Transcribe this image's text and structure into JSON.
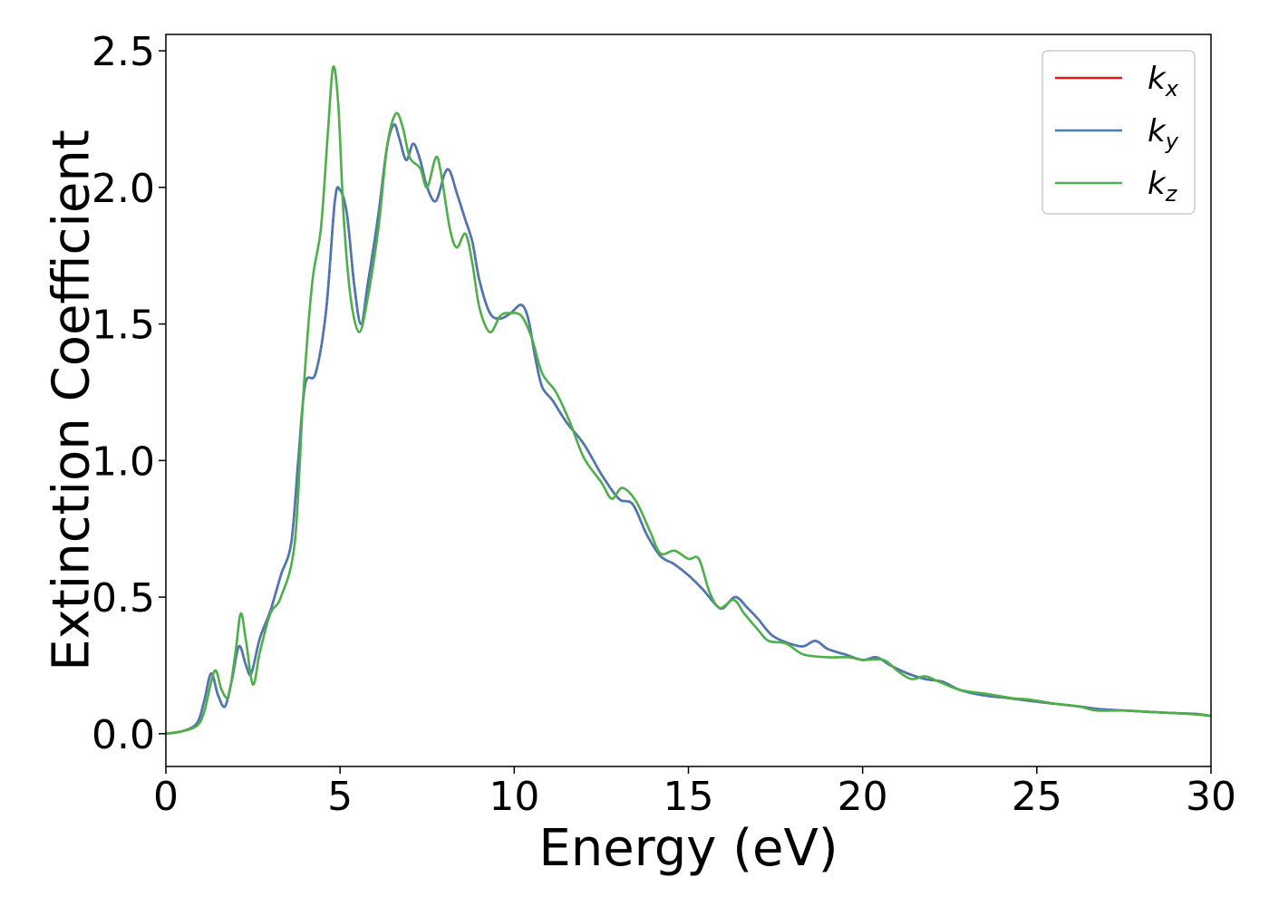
{
  "chart_data": {
    "type": "line",
    "xlabel": "Energy (eV)",
    "ylabel": "Extinction Coefficient",
    "xlim": [
      0,
      30
    ],
    "ylim": [
      -0.12,
      2.56
    ],
    "x_ticks": [
      "0",
      "5",
      "10",
      "15",
      "20",
      "25",
      "30"
    ],
    "y_ticks": [
      "0.0",
      "0.5",
      "1.0",
      "1.5",
      "2.0",
      "2.5"
    ],
    "grid": false,
    "legend_position": "top-right",
    "legend": [
      {
        "symbol": "k",
        "sub": "x"
      },
      {
        "symbol": "k",
        "sub": "y"
      },
      {
        "symbol": "k",
        "sub": "z"
      }
    ],
    "series": [
      {
        "name": "k_x",
        "color": "#e41a1c",
        "points": [
          [
            0,
            0
          ],
          [
            0.5,
            0.01
          ],
          [
            0.9,
            0.04
          ],
          [
            1.1,
            0.12
          ],
          [
            1.3,
            0.22
          ],
          [
            1.5,
            0.14
          ],
          [
            1.7,
            0.1
          ],
          [
            1.9,
            0.2
          ],
          [
            2.1,
            0.32
          ],
          [
            2.3,
            0.25
          ],
          [
            2.45,
            0.22
          ],
          [
            2.7,
            0.35
          ],
          [
            3.0,
            0.45
          ],
          [
            3.3,
            0.58
          ],
          [
            3.6,
            0.7
          ],
          [
            3.8,
            1.0
          ],
          [
            4.0,
            1.28
          ],
          [
            4.3,
            1.32
          ],
          [
            4.6,
            1.55
          ],
          [
            4.85,
            1.95
          ],
          [
            5.0,
            1.99
          ],
          [
            5.2,
            1.9
          ],
          [
            5.4,
            1.65
          ],
          [
            5.6,
            1.5
          ],
          [
            5.8,
            1.65
          ],
          [
            6.1,
            1.9
          ],
          [
            6.35,
            2.15
          ],
          [
            6.55,
            2.23
          ],
          [
            6.7,
            2.18
          ],
          [
            6.9,
            2.1
          ],
          [
            7.1,
            2.16
          ],
          [
            7.3,
            2.1
          ],
          [
            7.5,
            2.0
          ],
          [
            7.75,
            1.95
          ],
          [
            8.0,
            2.05
          ],
          [
            8.15,
            2.06
          ],
          [
            8.35,
            1.98
          ],
          [
            8.6,
            1.88
          ],
          [
            8.8,
            1.8
          ],
          [
            9.0,
            1.66
          ],
          [
            9.3,
            1.54
          ],
          [
            9.6,
            1.52
          ],
          [
            9.9,
            1.54
          ],
          [
            10.2,
            1.57
          ],
          [
            10.4,
            1.52
          ],
          [
            10.6,
            1.38
          ],
          [
            10.8,
            1.27
          ],
          [
            11.1,
            1.22
          ],
          [
            11.5,
            1.14
          ],
          [
            12.0,
            1.06
          ],
          [
            12.5,
            0.95
          ],
          [
            13.0,
            0.86
          ],
          [
            13.4,
            0.84
          ],
          [
            13.8,
            0.73
          ],
          [
            14.2,
            0.65
          ],
          [
            14.6,
            0.62
          ],
          [
            15.0,
            0.58
          ],
          [
            15.4,
            0.53
          ],
          [
            15.8,
            0.47
          ],
          [
            16.0,
            0.46
          ],
          [
            16.35,
            0.5
          ],
          [
            16.7,
            0.46
          ],
          [
            17.0,
            0.42
          ],
          [
            17.4,
            0.36
          ],
          [
            17.9,
            0.33
          ],
          [
            18.3,
            0.32
          ],
          [
            18.65,
            0.34
          ],
          [
            19.0,
            0.31
          ],
          [
            19.5,
            0.29
          ],
          [
            20.0,
            0.27
          ],
          [
            20.4,
            0.28
          ],
          [
            20.8,
            0.25
          ],
          [
            21.3,
            0.22
          ],
          [
            21.8,
            0.2
          ],
          [
            22.3,
            0.19
          ],
          [
            22.8,
            0.16
          ],
          [
            23.5,
            0.14
          ],
          [
            24.2,
            0.13
          ],
          [
            24.8,
            0.12
          ],
          [
            25.5,
            0.11
          ],
          [
            26.2,
            0.1
          ],
          [
            26.8,
            0.09
          ],
          [
            27.5,
            0.085
          ],
          [
            28.2,
            0.08
          ],
          [
            29.0,
            0.075
          ],
          [
            29.6,
            0.072
          ],
          [
            30.0,
            0.065
          ]
        ]
      },
      {
        "name": "k_y",
        "color": "#4a7ab5",
        "points": [
          [
            0,
            0
          ],
          [
            0.5,
            0.01
          ],
          [
            0.9,
            0.04
          ],
          [
            1.1,
            0.12
          ],
          [
            1.3,
            0.22
          ],
          [
            1.5,
            0.14
          ],
          [
            1.7,
            0.1
          ],
          [
            1.9,
            0.2
          ],
          [
            2.1,
            0.32
          ],
          [
            2.3,
            0.25
          ],
          [
            2.45,
            0.22
          ],
          [
            2.7,
            0.35
          ],
          [
            3.0,
            0.45
          ],
          [
            3.3,
            0.58
          ],
          [
            3.6,
            0.7
          ],
          [
            3.8,
            1.0
          ],
          [
            4.0,
            1.28
          ],
          [
            4.3,
            1.32
          ],
          [
            4.6,
            1.55
          ],
          [
            4.85,
            1.95
          ],
          [
            5.0,
            1.99
          ],
          [
            5.2,
            1.9
          ],
          [
            5.4,
            1.65
          ],
          [
            5.6,
            1.5
          ],
          [
            5.8,
            1.65
          ],
          [
            6.1,
            1.9
          ],
          [
            6.35,
            2.15
          ],
          [
            6.55,
            2.23
          ],
          [
            6.7,
            2.18
          ],
          [
            6.9,
            2.1
          ],
          [
            7.1,
            2.16
          ],
          [
            7.3,
            2.1
          ],
          [
            7.5,
            2.0
          ],
          [
            7.75,
            1.95
          ],
          [
            8.0,
            2.05
          ],
          [
            8.15,
            2.06
          ],
          [
            8.35,
            1.98
          ],
          [
            8.6,
            1.88
          ],
          [
            8.8,
            1.8
          ],
          [
            9.0,
            1.66
          ],
          [
            9.3,
            1.54
          ],
          [
            9.6,
            1.52
          ],
          [
            9.9,
            1.54
          ],
          [
            10.2,
            1.57
          ],
          [
            10.4,
            1.52
          ],
          [
            10.6,
            1.38
          ],
          [
            10.8,
            1.27
          ],
          [
            11.1,
            1.22
          ],
          [
            11.5,
            1.14
          ],
          [
            12.0,
            1.06
          ],
          [
            12.5,
            0.95
          ],
          [
            13.0,
            0.86
          ],
          [
            13.4,
            0.84
          ],
          [
            13.8,
            0.73
          ],
          [
            14.2,
            0.65
          ],
          [
            14.6,
            0.62
          ],
          [
            15.0,
            0.58
          ],
          [
            15.4,
            0.53
          ],
          [
            15.8,
            0.47
          ],
          [
            16.0,
            0.46
          ],
          [
            16.35,
            0.5
          ],
          [
            16.7,
            0.46
          ],
          [
            17.0,
            0.42
          ],
          [
            17.4,
            0.36
          ],
          [
            17.9,
            0.33
          ],
          [
            18.3,
            0.32
          ],
          [
            18.65,
            0.34
          ],
          [
            19.0,
            0.31
          ],
          [
            19.5,
            0.29
          ],
          [
            20.0,
            0.27
          ],
          [
            20.4,
            0.28
          ],
          [
            20.8,
            0.25
          ],
          [
            21.3,
            0.22
          ],
          [
            21.8,
            0.2
          ],
          [
            22.3,
            0.19
          ],
          [
            22.8,
            0.16
          ],
          [
            23.5,
            0.14
          ],
          [
            24.2,
            0.13
          ],
          [
            24.8,
            0.12
          ],
          [
            25.5,
            0.11
          ],
          [
            26.2,
            0.1
          ],
          [
            26.8,
            0.09
          ],
          [
            27.5,
            0.085
          ],
          [
            28.2,
            0.08
          ],
          [
            29.0,
            0.075
          ],
          [
            29.6,
            0.072
          ],
          [
            30.0,
            0.065
          ]
        ]
      },
      {
        "name": "k_z",
        "color": "#4daf4a",
        "points": [
          [
            0,
            0
          ],
          [
            0.5,
            0.01
          ],
          [
            0.9,
            0.03
          ],
          [
            1.1,
            0.08
          ],
          [
            1.4,
            0.23
          ],
          [
            1.6,
            0.16
          ],
          [
            1.8,
            0.14
          ],
          [
            2.0,
            0.3
          ],
          [
            2.15,
            0.44
          ],
          [
            2.3,
            0.34
          ],
          [
            2.5,
            0.18
          ],
          [
            2.7,
            0.3
          ],
          [
            3.0,
            0.44
          ],
          [
            3.3,
            0.5
          ],
          [
            3.7,
            0.7
          ],
          [
            3.95,
            1.25
          ],
          [
            4.2,
            1.65
          ],
          [
            4.45,
            1.85
          ],
          [
            4.65,
            2.2
          ],
          [
            4.8,
            2.44
          ],
          [
            4.95,
            2.3
          ],
          [
            5.1,
            1.9
          ],
          [
            5.3,
            1.6
          ],
          [
            5.55,
            1.47
          ],
          [
            5.8,
            1.6
          ],
          [
            6.1,
            1.85
          ],
          [
            6.35,
            2.15
          ],
          [
            6.6,
            2.27
          ],
          [
            6.8,
            2.22
          ],
          [
            7.0,
            2.11
          ],
          [
            7.3,
            2.07
          ],
          [
            7.5,
            2.0
          ],
          [
            7.75,
            2.11
          ],
          [
            7.9,
            2.05
          ],
          [
            8.15,
            1.85
          ],
          [
            8.35,
            1.78
          ],
          [
            8.6,
            1.83
          ],
          [
            8.8,
            1.72
          ],
          [
            9.0,
            1.56
          ],
          [
            9.3,
            1.47
          ],
          [
            9.6,
            1.53
          ],
          [
            9.85,
            1.54
          ],
          [
            10.2,
            1.53
          ],
          [
            10.5,
            1.45
          ],
          [
            10.8,
            1.32
          ],
          [
            11.2,
            1.25
          ],
          [
            11.6,
            1.14
          ],
          [
            12.0,
            1.01
          ],
          [
            12.5,
            0.92
          ],
          [
            12.8,
            0.86
          ],
          [
            13.1,
            0.9
          ],
          [
            13.5,
            0.85
          ],
          [
            13.9,
            0.74
          ],
          [
            14.2,
            0.66
          ],
          [
            14.6,
            0.67
          ],
          [
            15.0,
            0.64
          ],
          [
            15.3,
            0.64
          ],
          [
            15.6,
            0.52
          ],
          [
            15.9,
            0.46
          ],
          [
            16.3,
            0.49
          ],
          [
            16.6,
            0.44
          ],
          [
            17.0,
            0.38
          ],
          [
            17.3,
            0.34
          ],
          [
            17.8,
            0.33
          ],
          [
            18.3,
            0.29
          ],
          [
            19.0,
            0.28
          ],
          [
            19.6,
            0.28
          ],
          [
            20.0,
            0.27
          ],
          [
            20.6,
            0.27
          ],
          [
            21.0,
            0.23
          ],
          [
            21.4,
            0.2
          ],
          [
            21.8,
            0.21
          ],
          [
            22.2,
            0.19
          ],
          [
            22.8,
            0.16
          ],
          [
            23.6,
            0.145
          ],
          [
            24.3,
            0.13
          ],
          [
            24.8,
            0.125
          ],
          [
            25.5,
            0.11
          ],
          [
            26.2,
            0.1
          ],
          [
            26.7,
            0.085
          ],
          [
            27.5,
            0.085
          ],
          [
            28.2,
            0.08
          ],
          [
            29.0,
            0.075
          ],
          [
            29.6,
            0.07
          ],
          [
            30.0,
            0.065
          ]
        ]
      }
    ]
  }
}
